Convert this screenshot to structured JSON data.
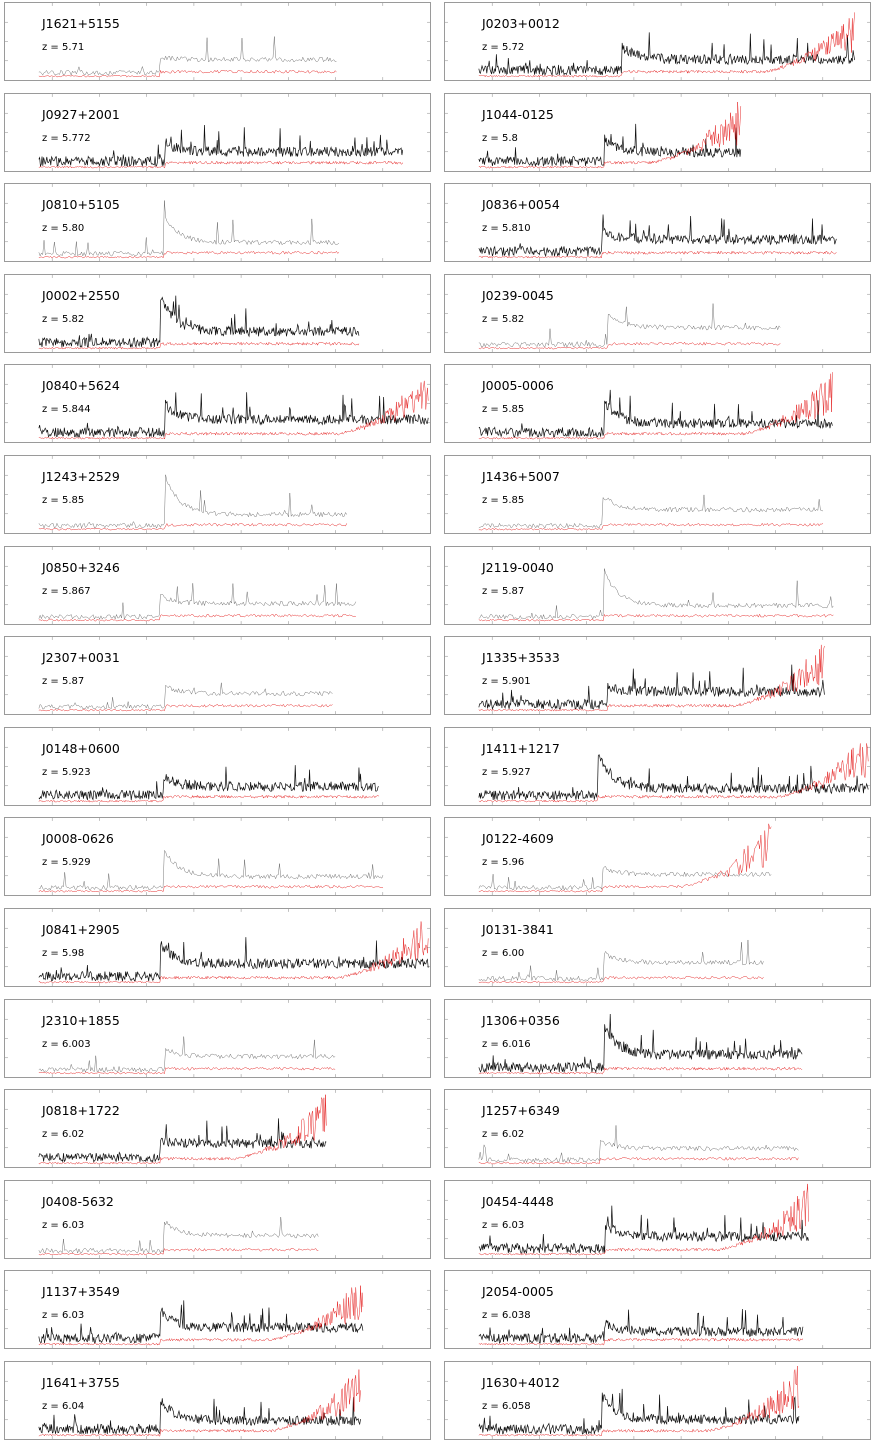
{
  "figure": {
    "colors": {
      "flux": "#000000",
      "noise": "#e00000",
      "frame": "#9a9a9a",
      "background": "#ffffff"
    },
    "columns": 2,
    "rows": 16
  },
  "chart_data": {
    "type": "line",
    "description_series": [
      {
        "name": "",
        "color": "#000000",
        "role": "spectrum flux"
      },
      {
        "name": "",
        "color": "#e00000",
        "role": "error spectrum"
      }
    ],
    "panels": [
      {
        "name": "J1621+5155",
        "z_label": "z = 5.71",
        "z": 5.71
      },
      {
        "name": "J0203+0012",
        "z_label": "z = 5.72",
        "z": 5.72
      },
      {
        "name": "J0927+2001",
        "z_label": "z = 5.772",
        "z": 5.772
      },
      {
        "name": "J1044-0125",
        "z_label": "z = 5.8",
        "z": 5.8
      },
      {
        "name": "J0810+5105",
        "z_label": "z = 5.80",
        "z": 5.8
      },
      {
        "name": "J0836+0054",
        "z_label": "z = 5.810",
        "z": 5.81
      },
      {
        "name": "J0002+2550",
        "z_label": "z = 5.82",
        "z": 5.82
      },
      {
        "name": "J0239-0045",
        "z_label": "z = 5.82",
        "z": 5.82
      },
      {
        "name": "J0840+5624",
        "z_label": "z = 5.844",
        "z": 5.844
      },
      {
        "name": "J0005-0006",
        "z_label": "z = 5.85",
        "z": 5.85
      },
      {
        "name": "J1243+2529",
        "z_label": "z = 5.85",
        "z": 5.85
      },
      {
        "name": "J1436+5007",
        "z_label": "z = 5.85",
        "z": 5.85
      },
      {
        "name": "J0850+3246",
        "z_label": "z = 5.867",
        "z": 5.867
      },
      {
        "name": "J2119-0040",
        "z_label": "z = 5.87",
        "z": 5.87
      },
      {
        "name": "J2307+0031",
        "z_label": "z = 5.87",
        "z": 5.87
      },
      {
        "name": "J1335+3533",
        "z_label": "z = 5.901",
        "z": 5.901
      },
      {
        "name": "J0148+0600",
        "z_label": "z = 5.923",
        "z": 5.923
      },
      {
        "name": "J1411+1217",
        "z_label": "z = 5.927",
        "z": 5.927
      },
      {
        "name": "J0008-0626",
        "z_label": "z = 5.929",
        "z": 5.929
      },
      {
        "name": "J0122-4609",
        "z_label": "z = 5.96",
        "z": 5.96
      },
      {
        "name": "J0841+2905",
        "z_label": "z = 5.98",
        "z": 5.98
      },
      {
        "name": "J0131-3841",
        "z_label": "z = 6.00",
        "z": 6.0
      },
      {
        "name": "J2310+1855",
        "z_label": "z = 6.003",
        "z": 6.003
      },
      {
        "name": "J1306+0356",
        "z_label": "z = 6.016",
        "z": 6.016
      },
      {
        "name": "J0818+1722",
        "z_label": "z = 6.02",
        "z": 6.02
      },
      {
        "name": "J1257+6349",
        "z_label": "z = 6.02",
        "z": 6.02
      },
      {
        "name": "J0408-5632",
        "z_label": "z = 6.03",
        "z": 6.03
      },
      {
        "name": "J0454-4448",
        "z_label": "z = 6.03",
        "z": 6.03
      },
      {
        "name": "J1137+3549",
        "z_label": "z = 6.03",
        "z": 6.03
      },
      {
        "name": "J2054-0005",
        "z_label": "z = 6.038",
        "z": 6.038
      },
      {
        "name": "J1641+3755",
        "z_label": "z = 6.04",
        "z": 6.04
      },
      {
        "name": "J1630+4012",
        "z_label": "z = 6.058",
        "z": 6.058
      }
    ]
  }
}
